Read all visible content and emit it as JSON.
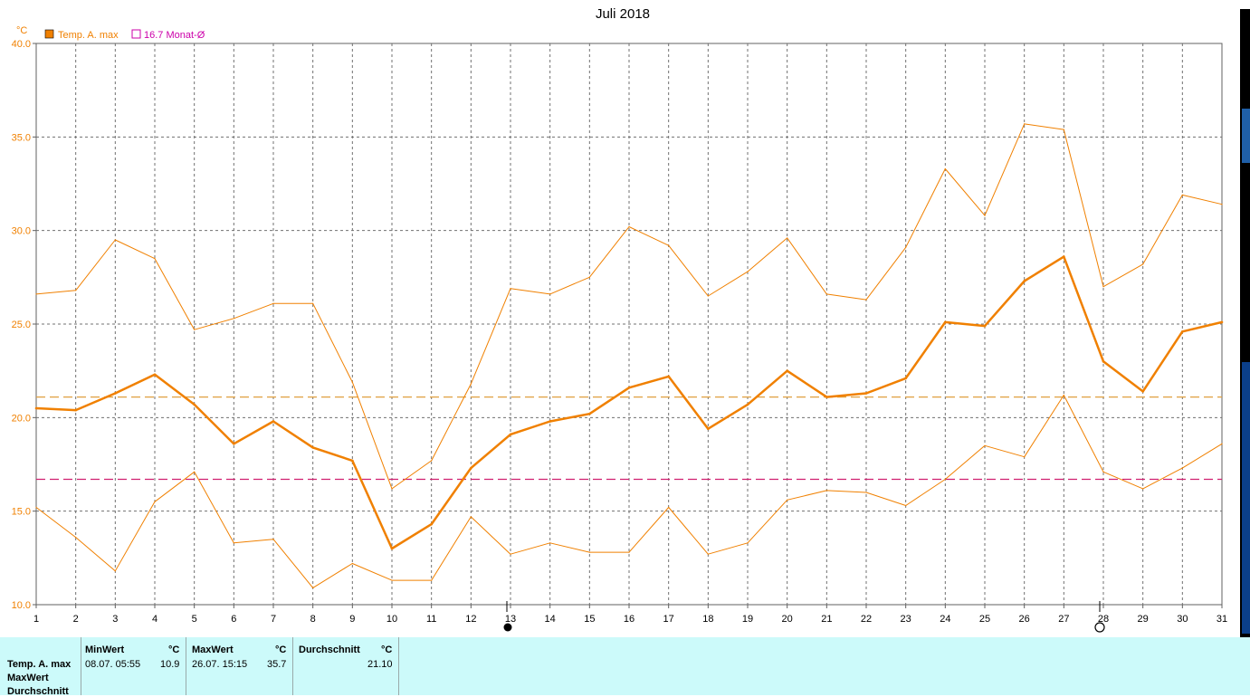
{
  "window": {
    "title": "Juli 2018"
  },
  "legend": {
    "unit": "°C",
    "items": [
      {
        "label": "Temp. A. max",
        "color": "#f08000",
        "filled": true
      },
      {
        "label": "16.7 Monat-Ø",
        "color": "#cc00aa",
        "filled": false
      }
    ]
  },
  "chart_data": {
    "type": "line",
    "title": "Juli 2018",
    "ylabel": "°C",
    "ylim": [
      10,
      40
    ],
    "yticks": [
      "10.0",
      "15.0",
      "20.0",
      "25.0",
      "30.0",
      "35.0",
      "40.0"
    ],
    "x": [
      1,
      2,
      3,
      4,
      5,
      6,
      7,
      8,
      9,
      10,
      11,
      12,
      13,
      14,
      15,
      16,
      17,
      18,
      19,
      20,
      21,
      22,
      23,
      24,
      25,
      26,
      27,
      28,
      29,
      30,
      31
    ],
    "grid": true,
    "series": [
      {
        "name": "Temp. A. max",
        "color": "#f08000",
        "width": 2.5,
        "values": [
          20.5,
          20.4,
          21.3,
          22.3,
          20.7,
          18.6,
          19.8,
          18.4,
          17.7,
          13.0,
          14.3,
          17.3,
          19.1,
          19.8,
          20.2,
          21.6,
          22.2,
          19.4,
          20.7,
          22.5,
          21.1,
          21.3,
          22.1,
          25.1,
          24.9,
          27.3,
          28.6,
          23.0,
          21.4,
          24.6,
          25.1
        ]
      },
      {
        "name": "",
        "color": "#f08000",
        "width": 1,
        "values": [
          26.6,
          26.8,
          29.5,
          28.5,
          24.7,
          25.3,
          26.1,
          26.1,
          21.9,
          16.2,
          17.7,
          21.8,
          26.9,
          26.6,
          27.5,
          30.2,
          29.2,
          26.5,
          27.8,
          29.6,
          26.6,
          26.3,
          29.1,
          33.3,
          30.8,
          35.7,
          35.4,
          27.0,
          28.2,
          31.9,
          31.4
        ]
      },
      {
        "name": "",
        "color": "#f08000",
        "width": 1,
        "values": [
          15.2,
          13.6,
          11.8,
          15.5,
          17.1,
          13.3,
          13.5,
          10.9,
          12.2,
          11.3,
          11.3,
          14.7,
          12.7,
          13.3,
          12.8,
          12.8,
          15.2,
          12.7,
          13.3,
          15.6,
          16.1,
          16.0,
          15.3,
          16.7,
          18.5,
          17.9,
          21.2,
          17.1,
          16.2,
          17.3,
          18.6
        ]
      }
    ],
    "reference_lines": [
      {
        "value": 21.1,
        "color": "#e0a040"
      },
      {
        "value": 16.7,
        "color": "#d02070"
      }
    ],
    "moon_phases": [
      {
        "day": 13,
        "phase": "new"
      },
      {
        "day": 28,
        "phase": "full"
      }
    ]
  },
  "stats": {
    "row_labels": [
      "Temp. A. max",
      "MaxWert",
      "Durchschnitt"
    ],
    "min": {
      "header": "MinWert",
      "unit": "°C",
      "datetime": "08.07.  05:55",
      "value": "10.9"
    },
    "max": {
      "header": "MaxWert",
      "unit": "°C",
      "datetime": "26.07.  15:15",
      "value": "35.7"
    },
    "avg": {
      "header": "Durchschnitt",
      "unit": "°C",
      "value": "21.10"
    }
  }
}
